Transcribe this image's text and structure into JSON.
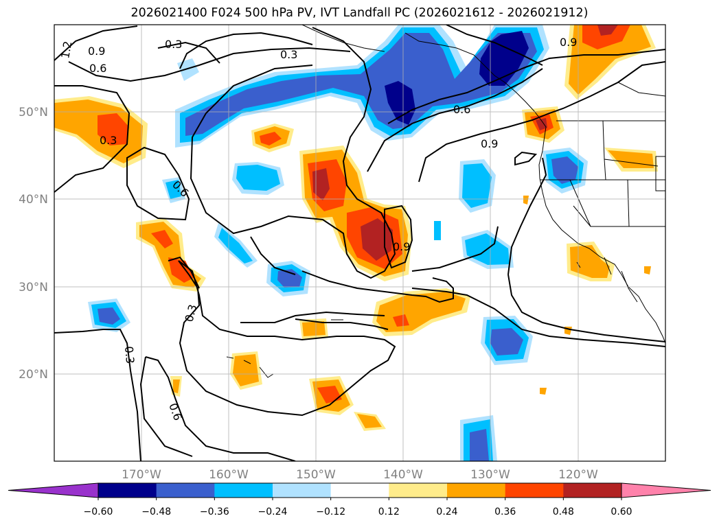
{
  "title": "2026021400 F024 500 hPa PV, IVT Landfall PC (2026021612 - 2026021912)",
  "map": {
    "lat_labels": [
      "50°N",
      "40°N",
      "30°N",
      "20°N"
    ],
    "lon_labels": [
      "170°W",
      "160°W",
      "150°W",
      "140°W",
      "130°W",
      "120°W"
    ],
    "contour_labels": [
      "1.2",
      "0.9",
      "0.6",
      "0.3",
      "0.3",
      "0.3",
      "0.6",
      "0.9",
      "0.6",
      "0.9",
      "0.9",
      "0.3",
      "0.6",
      "0.3"
    ]
  },
  "colorbar": {
    "ticks": [
      "−0.60",
      "−0.48",
      "−0.36",
      "−0.24",
      "−0.12",
      "0.12",
      "0.24",
      "0.36",
      "0.48",
      "0.60"
    ],
    "colors": [
      "#9932cc",
      "#00008b",
      "#3a5fcd",
      "#00bfff",
      "#b0e2ff",
      "#ffffff",
      "#ffec8b",
      "#ffa500",
      "#ff4500",
      "#b22222",
      "#ff82ab"
    ]
  }
}
